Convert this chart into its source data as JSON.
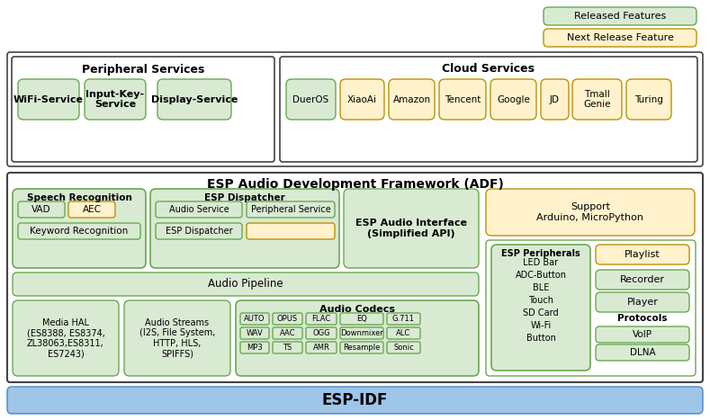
{
  "fig_w": 7.89,
  "fig_h": 4.67,
  "dpi": 100,
  "bg_color": "#ffffff",
  "green_fill": "#d9ead3",
  "green_edge": "#6aa84f",
  "yellow_fill": "#fff2cc",
  "yellow_edge": "#bf9000",
  "blue_fill": "#9fc5e8",
  "blue_edge": "#4a86c8",
  "white_fill": "#ffffff",
  "dark_edge": "#444444",
  "legend_green_label": "Released Features",
  "legend_yellow_label": "Next Release Feature",
  "peripheral_title": "Peripheral Services",
  "cloud_title": "Cloud Services",
  "adf_title": "ESP Audio Development Framework (ADF)",
  "espidf_label": "ESP-IDF",
  "speech_recog_title": "Speech Recognition",
  "esp_dispatcher_title": "ESP Dispatcher",
  "esp_audio_interface": "ESP Audio Interface\n(Simplified API)",
  "support_label": "Support\nArduino, MicroPython",
  "audio_pipeline_label": "Audio Pipeline",
  "media_hal_label": "Media HAL\n(ES8388, ES8374,\nZL38063,ES8311,\nES7243)",
  "audio_streams_label": "Audio Streams\n(I2S, File System,\nHTTP, HLS,\nSPIFFS)",
  "audio_codecs_title": "Audio Codecs",
  "audio_codecs_rows": [
    [
      "AUTO",
      "OPUS",
      "FLAC",
      "EQ",
      "G.711"
    ],
    [
      "WAV",
      "AAC",
      "OGG",
      "Downmixer",
      "ALC"
    ],
    [
      "MP3",
      "TS",
      "AMR",
      "Resample",
      "Sonic"
    ]
  ],
  "esp_peripherals_title": "ESP Peripherals",
  "esp_peripherals_items": [
    "LED Bar",
    "ADC-Button",
    "BLE",
    "Touch",
    "SD Card",
    "Wi-Fi",
    "Button"
  ],
  "right_col_items": [
    "Playlist",
    "Recorder",
    "Player"
  ],
  "right_col_colors": [
    "yellow",
    "green",
    "green"
  ],
  "protocols_title": "Protocols",
  "protocols_items": [
    "VoIP",
    "DLNA"
  ],
  "peripheral_items": [
    "WiFi-Service",
    "Input-Key-\nService",
    "Display-Service"
  ],
  "cloud_labels": [
    "DuerOS",
    "XiaoAi",
    "Amazon",
    "Tencent",
    "Google",
    "JD",
    "Tmall\nGenie",
    "Turing"
  ],
  "cloud_colors": [
    "green",
    "yellow",
    "yellow",
    "yellow",
    "yellow",
    "yellow",
    "yellow",
    "yellow"
  ]
}
